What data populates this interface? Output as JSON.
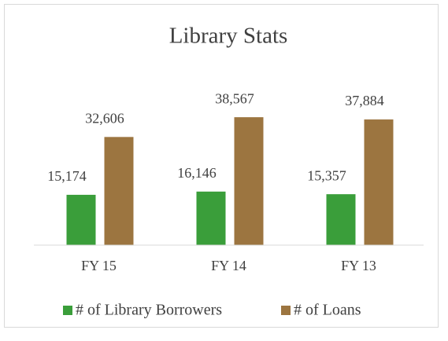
{
  "chart_data": {
    "type": "bar",
    "title": "Library Stats",
    "categories": [
      "FY 15",
      "FY 14",
      "FY 13"
    ],
    "series": [
      {
        "name": "# of Library Borrowers",
        "color": "#3a9e3a",
        "values": [
          15174,
          16146,
          15357
        ],
        "value_labels": [
          "15,174",
          "16,146",
          "15,357"
        ]
      },
      {
        "name": "# of Loans",
        "color": "#9c7540",
        "values": [
          32606,
          38567,
          37884
        ],
        "value_labels": [
          "32,606",
          "38,567",
          "37,884"
        ]
      }
    ],
    "ylim": [
      0,
      45000
    ],
    "legend": "bottom"
  }
}
